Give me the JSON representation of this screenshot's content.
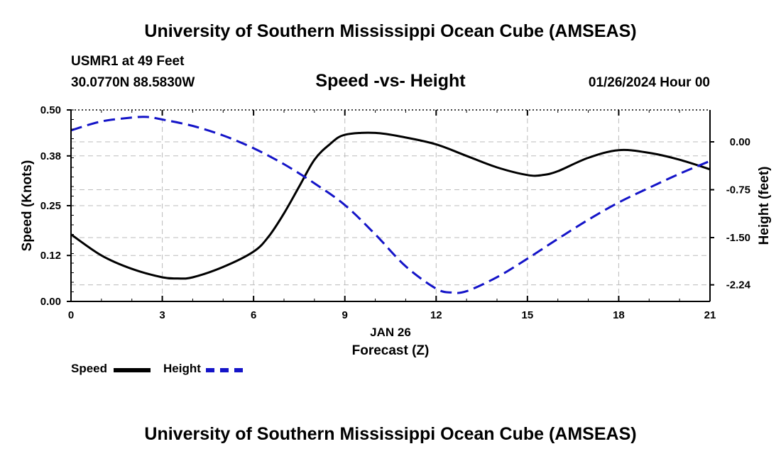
{
  "header": {
    "title": "University of Southern Mississippi Ocean Cube (AMSEAS)",
    "station": "USMR1 at 49 Feet",
    "coords": "30.0770N  88.5830W",
    "subtitle": "Speed -vs- Height",
    "datetime": "01/26/2024 Hour 00"
  },
  "footer": {
    "title": "University of Southern Mississippi Ocean Cube (AMSEAS)"
  },
  "legend": {
    "speed_label": "Speed",
    "height_label": "Height"
  },
  "colors": {
    "speed": "#000000",
    "height": "#1414c8",
    "grid": "#bbbbbb"
  },
  "chart_data": {
    "type": "line",
    "title": "Speed -vs- Height",
    "xlabel": "Forecast (Z)",
    "xdate_label": "JAN 26",
    "ylabel_left": "Speed (Knots)",
    "ylabel_right": "Height (feet)",
    "xlim": [
      0,
      21
    ],
    "ylim_left": [
      0,
      0.5
    ],
    "ylim_right": [
      -2.5,
      0.5
    ],
    "x_ticks": [
      "0",
      "3",
      "6",
      "9",
      "12",
      "15",
      "18",
      "21"
    ],
    "y_left_ticks": [
      "0.00",
      "0.12",
      "0.25",
      "0.38",
      "0.50"
    ],
    "y_right_ticks": [
      "0.00",
      "-0.75",
      "-1.50",
      "-2.24"
    ],
    "grid": true,
    "legend_position": "bottom-left",
    "series": [
      {
        "name": "Speed",
        "axis": "left",
        "style": "solid",
        "x": [
          0,
          1,
          2,
          3,
          3.5,
          4,
          5,
          6,
          6.5,
          7,
          7.5,
          8,
          8.5,
          9,
          10,
          11,
          12,
          13,
          14,
          15,
          15.5,
          16,
          17,
          18,
          19,
          20,
          21
        ],
        "values": [
          0.175,
          0.12,
          0.085,
          0.063,
          0.06,
          0.063,
          0.09,
          0.13,
          0.17,
          0.23,
          0.3,
          0.37,
          0.41,
          0.435,
          0.44,
          0.428,
          0.41,
          0.38,
          0.35,
          0.33,
          0.33,
          0.34,
          0.375,
          0.395,
          0.388,
          0.37,
          0.345
        ]
      },
      {
        "name": "Height",
        "axis": "right",
        "style": "dashed",
        "x": [
          0,
          1,
          2,
          2.5,
          3,
          4,
          5,
          6,
          7,
          8,
          9,
          10,
          11,
          12,
          12.5,
          13,
          14,
          15,
          16,
          17,
          18,
          19,
          20,
          21
        ],
        "values": [
          0.18,
          0.32,
          0.38,
          0.39,
          0.35,
          0.25,
          0.1,
          -0.1,
          -0.35,
          -0.65,
          -0.99,
          -1.45,
          -1.95,
          -2.3,
          -2.36,
          -2.34,
          -2.12,
          -1.83,
          -1.52,
          -1.22,
          -0.95,
          -0.72,
          -0.5,
          -0.3
        ]
      }
    ]
  }
}
